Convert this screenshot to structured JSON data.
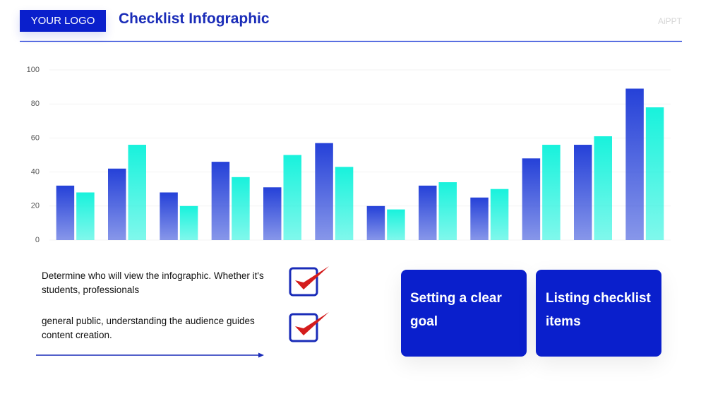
{
  "header": {
    "logo": "YOUR LOGO",
    "title": "Checklist Infographic",
    "brand": "AiPPT"
  },
  "chart_data": {
    "type": "bar",
    "categories": [
      null,
      null,
      null,
      null,
      null,
      null,
      null,
      null,
      null,
      null,
      null,
      null
    ],
    "series": [
      {
        "color": "#2541d8",
        "values": [
          32,
          42,
          28,
          46,
          31,
          57,
          20,
          32,
          25,
          48,
          56,
          89
        ]
      },
      {
        "color": "#18f2dc",
        "values": [
          28,
          56,
          20,
          37,
          50,
          43,
          18,
          34,
          30,
          56,
          61,
          78
        ]
      }
    ],
    "ylim": [
      0,
      100
    ],
    "yticks": [
      0,
      20,
      40,
      60,
      80,
      100
    ],
    "grid": true
  },
  "checklist": [
    {
      "text": "Determine who will view the infographic. Whether it's students, professionals"
    },
    {
      "text": "general public, understanding the audience guides content creation."
    }
  ],
  "cards": [
    {
      "title": "Setting a clear goal"
    },
    {
      "title": "Listing checklist items"
    }
  ]
}
